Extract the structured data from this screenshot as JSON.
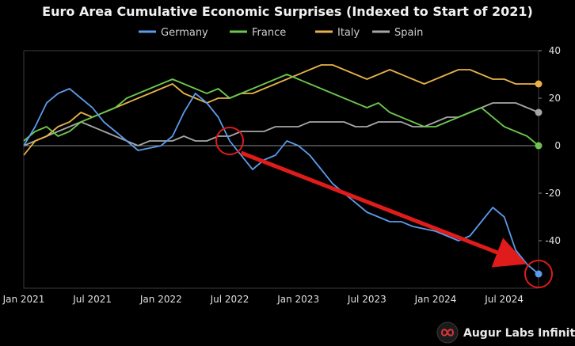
{
  "chart_data": {
    "type": "line",
    "title": "Euro Area Cumulative Economic Surprises (Indexed to Start of 2021)",
    "xlabel": "",
    "ylabel": "",
    "x_tick_labels": [
      "Jan 2021",
      "Jul 2021",
      "Jan 2022",
      "Jul 2022",
      "Jan 2023",
      "Jul 2023",
      "Jan 2024",
      "Jul 2024"
    ],
    "x_ticks": [
      "2021-01",
      "2021-07",
      "2022-01",
      "2022-07",
      "2023-01",
      "2023-07",
      "2024-01",
      "2024-07"
    ],
    "x_range": [
      "2021-01",
      "2024-10"
    ],
    "y_ticks": [
      40,
      20,
      0,
      -20,
      -40
    ],
    "ylim": [
      -60,
      40
    ],
    "y_axis_position": "right",
    "grid": false,
    "zero_line": true,
    "legend_position": "top",
    "series": [
      {
        "name": "Germany",
        "color": "#5b9bea",
        "x": [
          "2021-01",
          "2021-02",
          "2021-03",
          "2021-04",
          "2021-05",
          "2021-06",
          "2021-07",
          "2021-08",
          "2021-09",
          "2021-10",
          "2021-11",
          "2021-12",
          "2022-01",
          "2022-02",
          "2022-03",
          "2022-04",
          "2022-05",
          "2022-06",
          "2022-07",
          "2022-08",
          "2022-09",
          "2022-10",
          "2022-11",
          "2022-12",
          "2023-01",
          "2023-02",
          "2023-03",
          "2023-04",
          "2023-05",
          "2023-06",
          "2023-07",
          "2023-08",
          "2023-09",
          "2023-10",
          "2023-11",
          "2023-12",
          "2024-01",
          "2024-02",
          "2024-03",
          "2024-04",
          "2024-05",
          "2024-06",
          "2024-07",
          "2024-08",
          "2024-09",
          "2024-10"
        ],
        "values": [
          0,
          8,
          18,
          22,
          24,
          20,
          16,
          10,
          6,
          2,
          -2,
          -1,
          0,
          4,
          14,
          22,
          18,
          12,
          2,
          -4,
          -10,
          -6,
          -4,
          2,
          0,
          -4,
          -10,
          -16,
          -20,
          -24,
          -28,
          -30,
          -32,
          -32,
          -34,
          -35,
          -36,
          -38,
          -40,
          -38,
          -32,
          -26,
          -30,
          -44,
          -50,
          -54
        ]
      },
      {
        "name": "France",
        "color": "#6cc84c",
        "x": [
          "2021-01",
          "2021-02",
          "2021-03",
          "2021-04",
          "2021-05",
          "2021-06",
          "2021-07",
          "2021-08",
          "2021-09",
          "2021-10",
          "2021-11",
          "2021-12",
          "2022-01",
          "2022-02",
          "2022-03",
          "2022-04",
          "2022-05",
          "2022-06",
          "2022-07",
          "2022-08",
          "2022-09",
          "2022-10",
          "2022-11",
          "2022-12",
          "2023-01",
          "2023-02",
          "2023-03",
          "2023-04",
          "2023-05",
          "2023-06",
          "2023-07",
          "2023-08",
          "2023-09",
          "2023-10",
          "2023-11",
          "2023-12",
          "2024-01",
          "2024-02",
          "2024-03",
          "2024-04",
          "2024-05",
          "2024-06",
          "2024-07",
          "2024-08",
          "2024-09",
          "2024-10"
        ],
        "values": [
          2,
          6,
          8,
          4,
          6,
          10,
          12,
          14,
          16,
          20,
          22,
          24,
          26,
          28,
          26,
          24,
          22,
          24,
          20,
          22,
          24,
          26,
          28,
          30,
          28,
          26,
          24,
          22,
          20,
          18,
          16,
          18,
          14,
          12,
          10,
          8,
          8,
          10,
          12,
          14,
          16,
          12,
          8,
          6,
          4,
          0
        ]
      },
      {
        "name": "Italy",
        "color": "#e7b24a",
        "x": [
          "2021-01",
          "2021-02",
          "2021-03",
          "2021-04",
          "2021-05",
          "2021-06",
          "2021-07",
          "2021-08",
          "2021-09",
          "2021-10",
          "2021-11",
          "2021-12",
          "2022-01",
          "2022-02",
          "2022-03",
          "2022-04",
          "2022-05",
          "2022-06",
          "2022-07",
          "2022-08",
          "2022-09",
          "2022-10",
          "2022-11",
          "2022-12",
          "2023-01",
          "2023-02",
          "2023-03",
          "2023-04",
          "2023-05",
          "2023-06",
          "2023-07",
          "2023-08",
          "2023-09",
          "2023-10",
          "2023-11",
          "2023-12",
          "2024-01",
          "2024-02",
          "2024-03",
          "2024-04",
          "2024-05",
          "2024-06",
          "2024-07",
          "2024-08",
          "2024-09",
          "2024-10"
        ],
        "values": [
          -4,
          2,
          4,
          8,
          10,
          14,
          12,
          14,
          16,
          18,
          20,
          22,
          24,
          26,
          22,
          20,
          18,
          20,
          20,
          22,
          22,
          24,
          26,
          28,
          30,
          32,
          34,
          34,
          32,
          30,
          28,
          30,
          32,
          30,
          28,
          26,
          28,
          30,
          32,
          32,
          30,
          28,
          28,
          26,
          26,
          26
        ]
      },
      {
        "name": "Spain",
        "color": "#a6a6a6",
        "x": [
          "2021-01",
          "2021-02",
          "2021-03",
          "2021-04",
          "2021-05",
          "2021-06",
          "2021-07",
          "2021-08",
          "2021-09",
          "2021-10",
          "2021-11",
          "2021-12",
          "2022-01",
          "2022-02",
          "2022-03",
          "2022-04",
          "2022-05",
          "2022-06",
          "2022-07",
          "2022-08",
          "2022-09",
          "2022-10",
          "2022-11",
          "2022-12",
          "2023-01",
          "2023-02",
          "2023-03",
          "2023-04",
          "2023-05",
          "2023-06",
          "2023-07",
          "2023-08",
          "2023-09",
          "2023-10",
          "2023-11",
          "2023-12",
          "2024-01",
          "2024-02",
          "2024-03",
          "2024-04",
          "2024-05",
          "2024-06",
          "2024-07",
          "2024-08",
          "2024-09",
          "2024-10"
        ],
        "values": [
          0,
          2,
          4,
          6,
          8,
          10,
          8,
          6,
          4,
          2,
          0,
          2,
          2,
          2,
          4,
          2,
          2,
          4,
          4,
          6,
          6,
          6,
          8,
          8,
          8,
          10,
          10,
          10,
          10,
          8,
          8,
          10,
          10,
          10,
          8,
          8,
          10,
          12,
          12,
          14,
          16,
          18,
          18,
          18,
          16,
          14
        ]
      }
    ],
    "annotations": [
      {
        "type": "circle",
        "x": "2022-07",
        "y": 2,
        "color": "#e01b1b"
      },
      {
        "type": "circle",
        "x": "2024-10",
        "y": -54,
        "color": "#e01b1b"
      },
      {
        "type": "arrow",
        "from": {
          "x": "2022-08",
          "y": -3
        },
        "to": {
          "x": "2024-08",
          "y": -48
        },
        "color": "#e01b1b"
      }
    ]
  },
  "brand": {
    "name": "Augur Labs Infinity",
    "logo_icon": "infinity-logo-icon",
    "logo_color": "#d9343a"
  }
}
